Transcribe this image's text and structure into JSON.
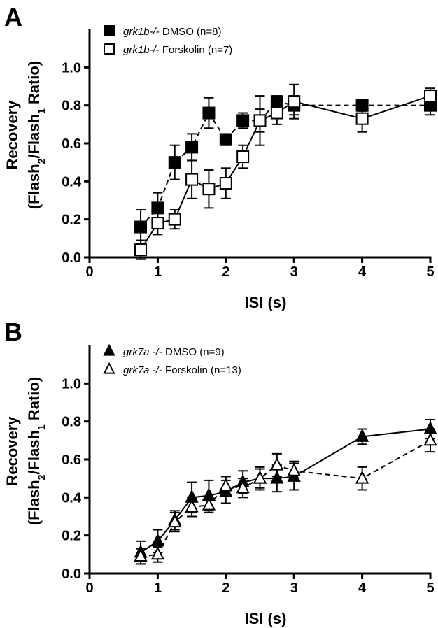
{
  "chart_data": [
    {
      "type": "scatter",
      "panel": "A",
      "xlabel": "ISI (s)",
      "ylabel_main": "Recovery",
      "ylabel_sub": [
        "(Flash",
        "2",
        "/Flash",
        "1",
        " Ratio)"
      ],
      "xlim": [
        0,
        5
      ],
      "ylim": [
        0,
        1.2
      ],
      "xticks": [
        "0",
        "1",
        "2",
        "3",
        "4",
        "5"
      ],
      "yticks": [
        "0.0",
        "0.2",
        "0.4",
        "0.6",
        "0.8",
        "1.0"
      ],
      "legend_placement": "top-left",
      "series": [
        {
          "name": "grk1b-/- DMSO (n=8)",
          "name_italic": "grk1b-/-",
          "name_rest": " DMSO (n=8)",
          "marker": "square-filled",
          "line": "dashed",
          "x": [
            0.75,
            1.0,
            1.25,
            1.5,
            1.75,
            2.0,
            2.25,
            2.5,
            2.75,
            3.0,
            4.0,
            5.0
          ],
          "y": [
            0.16,
            0.26,
            0.5,
            0.58,
            0.76,
            0.62,
            0.72,
            0.72,
            0.82,
            0.8,
            0.8,
            0.8
          ],
          "err": [
            0.09,
            0.08,
            0.09,
            0.07,
            0.08,
            0.03,
            0.04,
            0.13,
            0.03,
            0.05,
            0.03,
            0.05
          ]
        },
        {
          "name": "grk1b-/- Forskolin (n=7)",
          "name_italic": "grk1b-/-",
          "name_rest": " Forskolin (n=7)",
          "marker": "square-open",
          "line": "solid",
          "x": [
            0.75,
            1.0,
            1.25,
            1.5,
            1.75,
            2.0,
            2.25,
            2.5,
            2.75,
            3.0,
            4.0,
            5.0
          ],
          "y": [
            0.04,
            0.18,
            0.2,
            0.41,
            0.36,
            0.39,
            0.53,
            0.72,
            0.76,
            0.82,
            0.73,
            0.85
          ],
          "err": [
            0.05,
            0.06,
            0.05,
            0.1,
            0.1,
            0.08,
            0.06,
            0.06,
            0.06,
            0.09,
            0.07,
            0.04
          ]
        }
      ]
    },
    {
      "type": "scatter",
      "panel": "B",
      "xlabel": "ISI (s)",
      "ylabel_main": "Recovery",
      "ylabel_sub": [
        "(Flash",
        "2",
        "/Flash",
        "1",
        " Ratio)"
      ],
      "xlim": [
        0,
        5
      ],
      "ylim": [
        0,
        1.2
      ],
      "xticks": [
        "0",
        "1",
        "2",
        "3",
        "4",
        "5"
      ],
      "yticks": [
        "0.0",
        "0.2",
        "0.4",
        "0.6",
        "0.8",
        "1.0"
      ],
      "legend_placement": "top-left",
      "series": [
        {
          "name": "grk7a -/- DMSO (n=9)",
          "name_italic": "grk7a -/-",
          "name_rest": " DMSO (n=9)",
          "marker": "triangle-filled",
          "line": "solid",
          "x": [
            0.75,
            1.0,
            1.25,
            1.5,
            1.75,
            2.0,
            2.25,
            2.5,
            2.75,
            3.0,
            4.0,
            5.0
          ],
          "y": [
            0.11,
            0.17,
            0.28,
            0.4,
            0.41,
            0.43,
            0.48,
            0.5,
            0.5,
            0.51,
            0.72,
            0.76
          ],
          "err": [
            0.06,
            0.06,
            0.05,
            0.08,
            0.08,
            0.06,
            0.06,
            0.06,
            0.07,
            0.07,
            0.04,
            0.05
          ]
        },
        {
          "name": "grk7a -/- Forskolin (n=13)",
          "name_italic": "grk7a -/-",
          "name_rest": " Forskolin (n=13)",
          "marker": "triangle-open",
          "line": "dashed",
          "x": [
            0.75,
            1.0,
            1.25,
            1.5,
            1.75,
            2.0,
            2.25,
            2.5,
            2.75,
            3.0,
            4.0,
            5.0
          ],
          "y": [
            0.09,
            0.1,
            0.27,
            0.35,
            0.36,
            0.46,
            0.45,
            0.5,
            0.57,
            0.54,
            0.5,
            0.7
          ],
          "err": [
            0.04,
            0.04,
            0.05,
            0.05,
            0.04,
            0.05,
            0.05,
            0.05,
            0.06,
            0.05,
            0.06,
            0.06
          ]
        }
      ]
    }
  ]
}
